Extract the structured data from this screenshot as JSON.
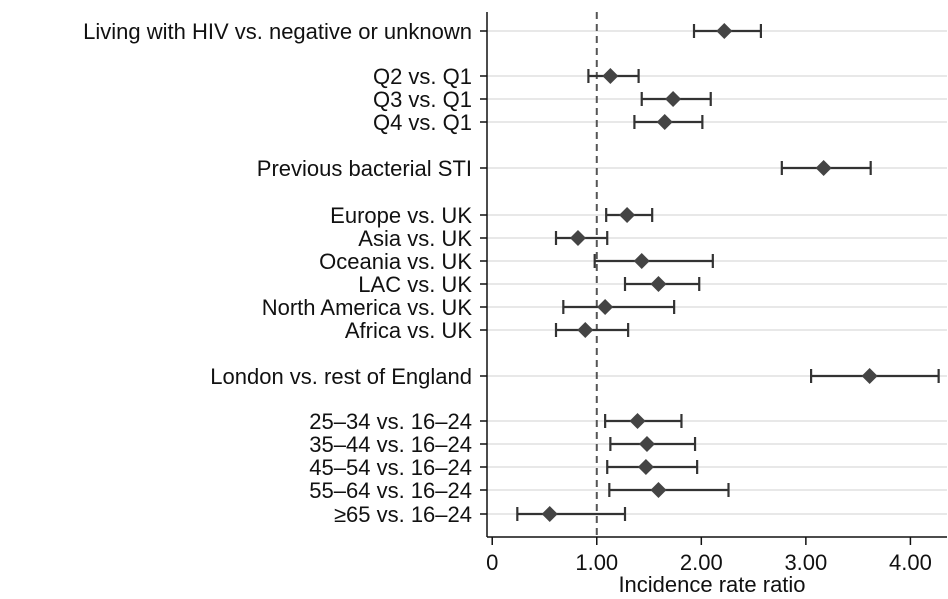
{
  "chart_data": {
    "type": "forest",
    "xlabel": "Incidence rate ratio",
    "xlim": [
      -0.05,
      4.35
    ],
    "x_ticks": [
      0,
      1,
      2,
      3,
      4
    ],
    "x_tick_labels": [
      "0",
      "1.00",
      "2.00",
      "3.00",
      "4.00"
    ],
    "reference_line": 1.0,
    "grid": "horizontal",
    "marker": "diamond",
    "rows": [
      {
        "label": "Living with HIV vs. negative or unknown",
        "estimate": 2.22,
        "lower": 1.93,
        "upper": 2.57
      },
      {
        "label": "Q2 vs. Q1",
        "estimate": 1.13,
        "lower": 0.92,
        "upper": 1.4
      },
      {
        "label": "Q3 vs. Q1",
        "estimate": 1.73,
        "lower": 1.43,
        "upper": 2.09
      },
      {
        "label": "Q4 vs. Q1",
        "estimate": 1.65,
        "lower": 1.36,
        "upper": 2.01
      },
      {
        "label": "Previous bacterial STI",
        "estimate": 3.17,
        "lower": 2.77,
        "upper": 3.62
      },
      {
        "label": "Europe vs. UK",
        "estimate": 1.29,
        "lower": 1.09,
        "upper": 1.53
      },
      {
        "label": "Asia vs. UK",
        "estimate": 0.82,
        "lower": 0.61,
        "upper": 1.1
      },
      {
        "label": "Oceania vs. UK",
        "estimate": 1.43,
        "lower": 0.98,
        "upper": 2.11
      },
      {
        "label": "LAC vs. UK",
        "estimate": 1.59,
        "lower": 1.27,
        "upper": 1.98
      },
      {
        "label": "North America vs. UK",
        "estimate": 1.08,
        "lower": 0.68,
        "upper": 1.74
      },
      {
        "label": "Africa vs. UK",
        "estimate": 0.89,
        "lower": 0.61,
        "upper": 1.3
      },
      {
        "label": "London vs. rest of England",
        "estimate": 3.61,
        "lower": 3.05,
        "upper": 4.27
      },
      {
        "label": "25–34 vs. 16–24",
        "estimate": 1.39,
        "lower": 1.08,
        "upper": 1.81
      },
      {
        "label": "35–44 vs. 16–24",
        "estimate": 1.48,
        "lower": 1.13,
        "upper": 1.94
      },
      {
        "label": "45–54 vs. 16–24",
        "estimate": 1.47,
        "lower": 1.1,
        "upper": 1.96
      },
      {
        "label": "55–64 vs. 16–24",
        "estimate": 1.59,
        "lower": 1.12,
        "upper": 2.26
      },
      {
        "label": "≥65 vs. 16–24",
        "estimate": 0.55,
        "lower": 0.24,
        "upper": 1.27
      }
    ],
    "colors": {
      "marker": "#444444",
      "ci_line": "#333333",
      "grid": "#e8e8e8",
      "reference": "#555555",
      "axis": "#111111",
      "text": "#111111"
    }
  }
}
